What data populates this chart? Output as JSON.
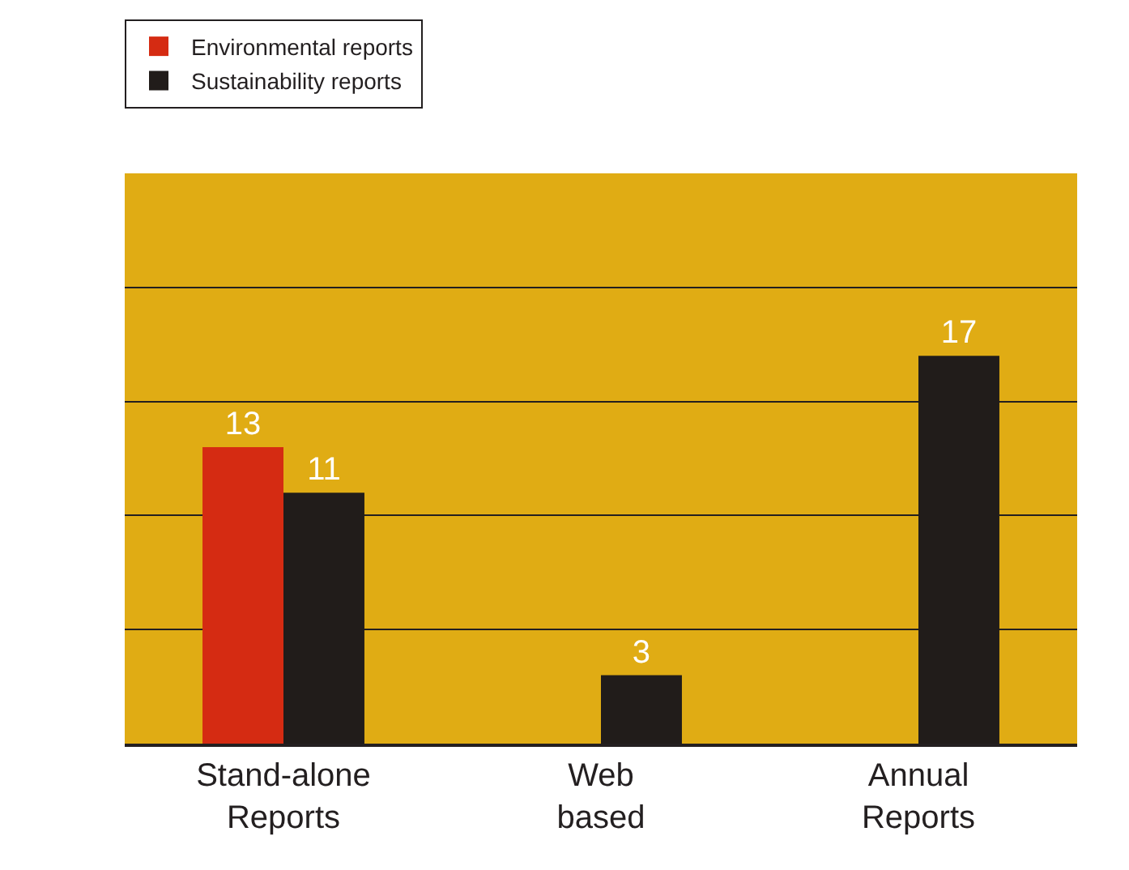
{
  "chart_data": {
    "type": "bar",
    "categories": [
      "Stand-alone Reports",
      "Web based",
      "Annual Reports"
    ],
    "series": [
      {
        "name": "Environmental reports",
        "color": "#d52b12",
        "values": [
          13,
          null,
          null
        ]
      },
      {
        "name": "Sustainability reports",
        "color": "#211c1a",
        "values": [
          11,
          3,
          17
        ]
      }
    ],
    "ylim": [
      0,
      25
    ],
    "yticks": [
      {
        "value": 0,
        "label": null
      },
      {
        "value": 5,
        "label": null
      },
      {
        "value": 10,
        "label": null
      },
      {
        "value": 15,
        "label": null
      },
      {
        "value": 20,
        "label": null
      },
      {
        "value": 25,
        "label": null
      }
    ],
    "grid": "y",
    "legend": "top left",
    "data_labels": true,
    "tick_labels": "x"
  }
}
